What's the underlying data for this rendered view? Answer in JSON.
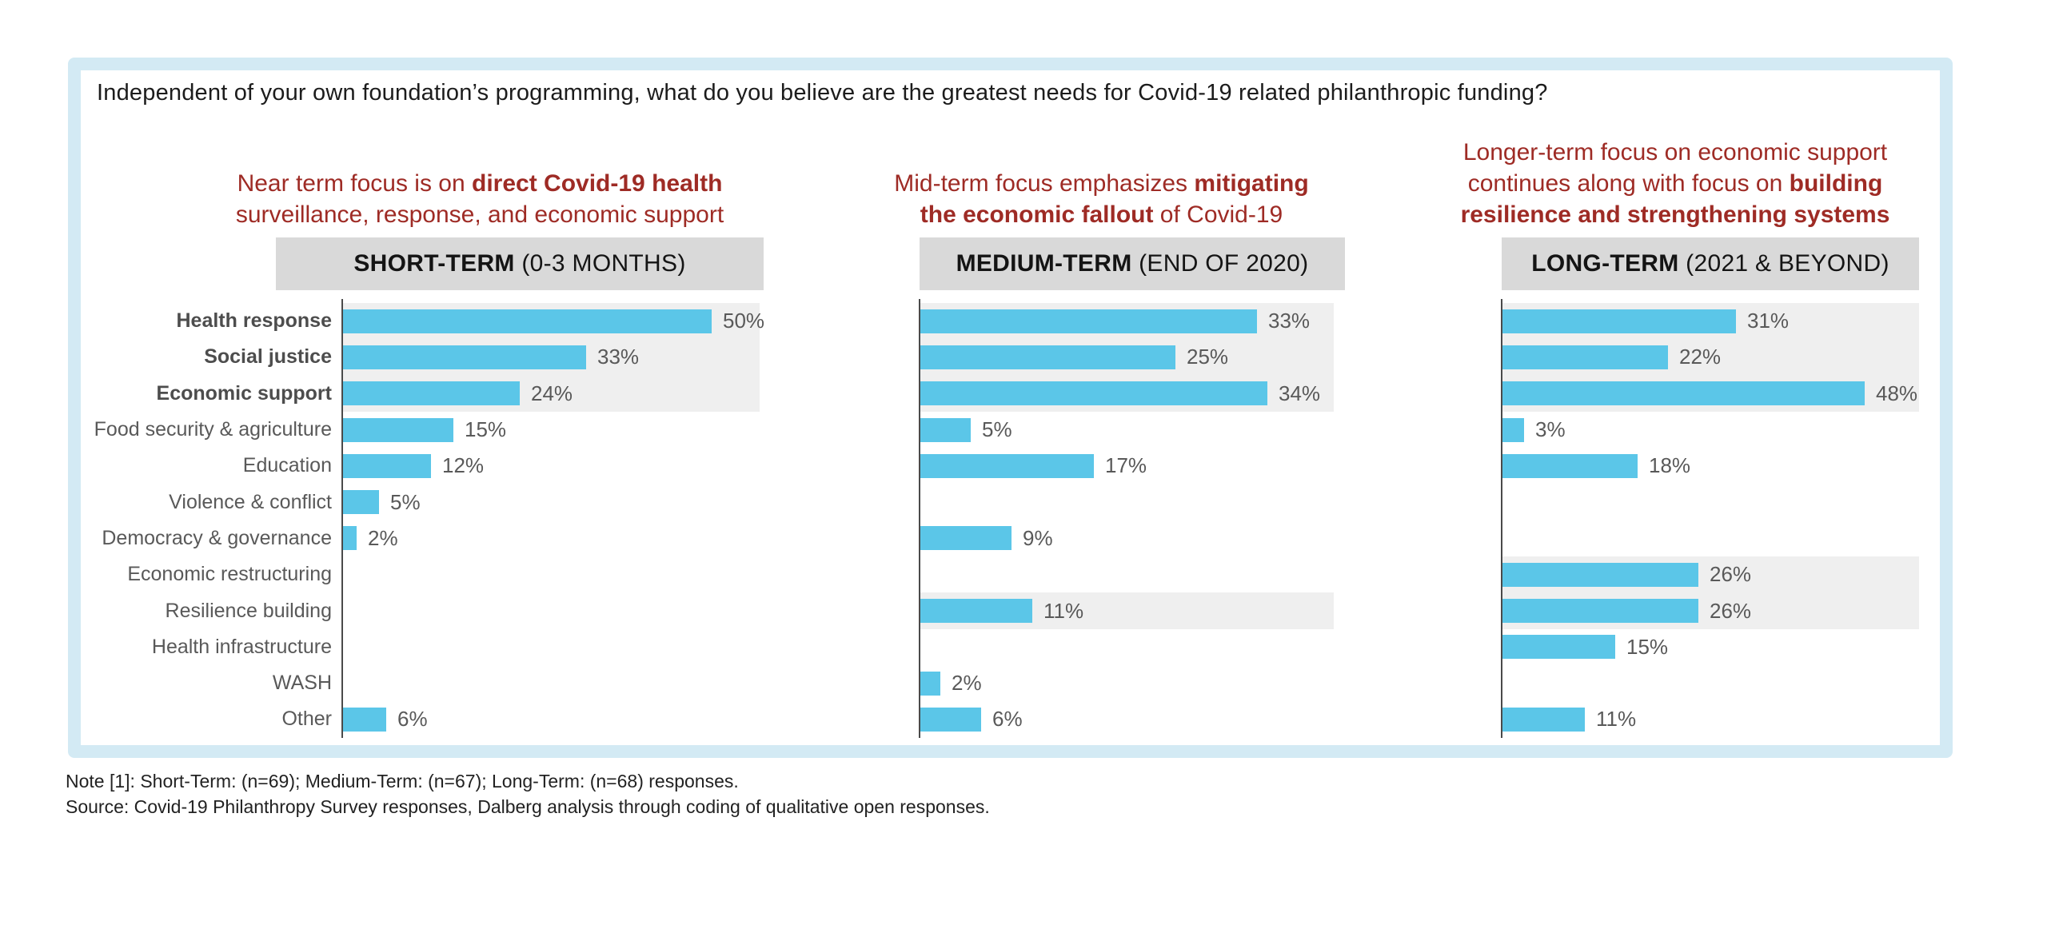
{
  "page": {
    "title": "Independent of your own foundation’s programming, what do you believe are the greatest needs for Covid-19 related philanthropic funding?",
    "note": "Note [1]: Short-Term: (n=69); Medium-Term: (n=67); Long-Term: (n=68) responses.",
    "source": "Source: Covid-19 Philanthropy Survey responses, Dalberg analysis through coding of qualitative open responses."
  },
  "colors": {
    "bar_blue": "#5bc6e8",
    "highlight_band_gray": "#efefef",
    "header_band_gray": "#d9d9d9",
    "annotation_red": "#9e2b25",
    "frame_light_blue": "#d3eaf4",
    "axis_gray": "#4a4a4a",
    "label_gray": "#595959"
  },
  "chart_data": {
    "type": "bar",
    "orientation": "horizontal",
    "unit": "%",
    "grid": false,
    "legend": "none",
    "categories": [
      "Health response",
      "Social justice",
      "Economic support",
      "Food security & agriculture",
      "Education",
      "Violence & conflict",
      "Democracy & governance",
      "Economic restructuring",
      "Resilience building",
      "Health infrastructure",
      "WASH",
      "Other"
    ],
    "bold_category_indexes": [
      0,
      1,
      2
    ],
    "panels": [
      {
        "id": "short-term",
        "header_bold": "SHORT-TERM",
        "header_rest": " (0-3 MONTHS)",
        "annotation_lines": [
          [
            {
              "text": "Near term focus is on ",
              "bold": false
            },
            {
              "text": "direct Covid-19 health",
              "bold": true
            }
          ],
          [
            {
              "text": "surveillance, response, and economic support",
              "bold": false
            }
          ]
        ],
        "values": [
          50,
          33,
          24,
          15,
          12,
          5,
          2,
          null,
          null,
          null,
          null,
          6
        ],
        "highlight_row_ranges": [
          [
            0,
            2
          ]
        ]
      },
      {
        "id": "medium-term",
        "header_bold": "MEDIUM-TERM",
        "header_rest": " (END OF 2020)",
        "annotation_lines": [
          [
            {
              "text": "Mid-term focus emphasizes ",
              "bold": false
            },
            {
              "text": "mitigating",
              "bold": true
            }
          ],
          [
            {
              "text": "the economic fallout",
              "bold": true
            },
            {
              "text": " of Covid-19",
              "bold": false
            }
          ]
        ],
        "values": [
          33,
          25,
          34,
          5,
          17,
          null,
          9,
          null,
          11,
          null,
          2,
          6
        ],
        "highlight_row_ranges": [
          [
            0,
            2
          ],
          [
            8,
            8
          ]
        ]
      },
      {
        "id": "long-term",
        "header_bold": "LONG-TERM",
        "header_rest": " (2021 & BEYOND)",
        "annotation_lines": [
          [
            {
              "text": "Longer-term focus on economic support",
              "bold": false
            }
          ],
          [
            {
              "text": "continues along with focus on ",
              "bold": false
            },
            {
              "text": "building",
              "bold": true
            }
          ],
          [
            {
              "text": "resilience and strengthening systems",
              "bold": true
            }
          ]
        ],
        "values": [
          31,
          22,
          48,
          3,
          18,
          null,
          null,
          26,
          26,
          15,
          null,
          11
        ],
        "highlight_row_ranges": [
          [
            0,
            2
          ],
          [
            7,
            8
          ]
        ]
      }
    ]
  }
}
